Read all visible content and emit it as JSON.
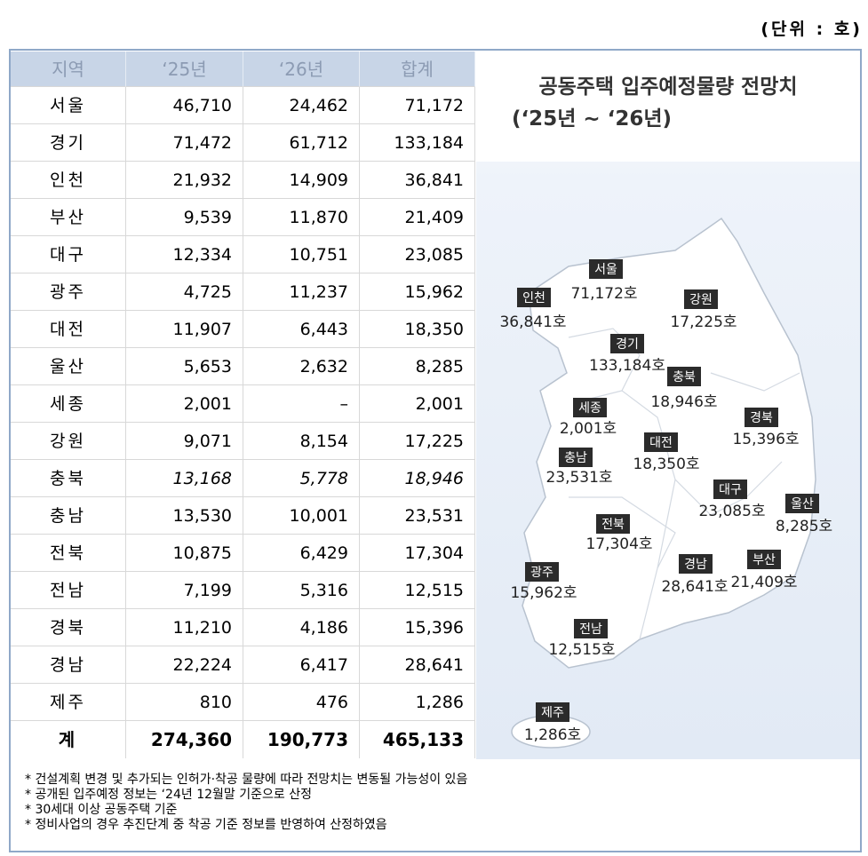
{
  "unit": "(단위 : 호)",
  "table": {
    "header": [
      "지역",
      "‘25년",
      "‘26년",
      "합계"
    ],
    "rows": [
      [
        "서울",
        "46,710",
        "24,462",
        "71,172"
      ],
      [
        "경기",
        "71,472",
        "61,712",
        "133,184"
      ],
      [
        "인천",
        "21,932",
        "14,909",
        "36,841"
      ],
      [
        "부산",
        "9,539",
        "11,870",
        "21,409"
      ],
      [
        "대구",
        "12,334",
        "10,751",
        "23,085"
      ],
      [
        "광주",
        "4,725",
        "11,237",
        "15,962"
      ],
      [
        "대전",
        "11,907",
        "6,443",
        "18,350"
      ],
      [
        "울산",
        "5,653",
        "2,632",
        "8,285"
      ],
      [
        "세종",
        "2,001",
        "–",
        "2,001"
      ],
      [
        "강원",
        "9,071",
        "8,154",
        "17,225"
      ],
      [
        "충북",
        "13,168",
        "5,778",
        "18,946"
      ],
      [
        "충남",
        "13,530",
        "10,001",
        "23,531"
      ],
      [
        "전북",
        "10,875",
        "6,429",
        "17,304"
      ],
      [
        "전남",
        "7,199",
        "5,316",
        "12,515"
      ],
      [
        "경북",
        "11,210",
        "4,186",
        "15,396"
      ],
      [
        "경남",
        "22,224",
        "6,417",
        "28,641"
      ],
      [
        "제주",
        "810",
        "476",
        "1,286"
      ]
    ],
    "total": [
      "계",
      "274,360",
      "190,773",
      "465,133"
    ]
  },
  "map": {
    "title": "공동주택 입주예정물량 전망치",
    "subtitle": "(‘25년 ~ ‘26년)",
    "labels": [
      {
        "name": "서울",
        "value": "71,172호"
      },
      {
        "name": "인천",
        "value": "36,841호"
      },
      {
        "name": "강원",
        "value": "17,225호"
      },
      {
        "name": "경기",
        "value": "133,184호"
      },
      {
        "name": "충북",
        "value": "18,946호"
      },
      {
        "name": "세종",
        "value": "2,001호"
      },
      {
        "name": "경북",
        "value": "15,396호"
      },
      {
        "name": "대전",
        "value": "18,350호"
      },
      {
        "name": "충남",
        "value": "23,531호"
      },
      {
        "name": "대구",
        "value": "23,085호"
      },
      {
        "name": "울산",
        "value": "8,285호"
      },
      {
        "name": "전북",
        "value": "17,304호"
      },
      {
        "name": "부산",
        "value": "21,409호"
      },
      {
        "name": "경남",
        "value": "28,641호"
      },
      {
        "name": "광주",
        "value": "15,962호"
      },
      {
        "name": "전남",
        "value": "12,515호"
      },
      {
        "name": "제주",
        "value": "1,286호"
      }
    ]
  },
  "notes": [
    "* 건설계획 변경 및 추가되는 인허가·착공 물량에 따라 전망치는 변동될 가능성이 있음",
    "* 공개된 입주예정 정보는 ‘24년 12월말 기준으로 산정",
    "* 30세대 이상 공동주택 기준",
    "* 정비사업의 경우 추진단계 중 착공 기준 정보를 반영하여 산정하였음"
  ]
}
